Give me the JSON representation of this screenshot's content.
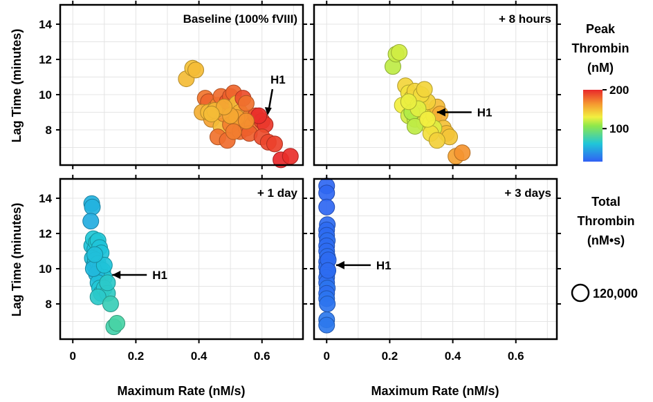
{
  "chart_data": {
    "type": "scatter",
    "xlabel": "Maximum Rate (nM/s)",
    "ylabel": "Lag Time (minutes)",
    "xlim": [
      -0.04,
      0.73
    ],
    "ylim": [
      6.0,
      15.1
    ],
    "xticks": [
      "0",
      "0.2",
      "0.4",
      "0.6"
    ],
    "xtick_values": [
      0,
      0.2,
      0.4,
      0.6
    ],
    "yticks": [
      "8",
      "10",
      "12",
      "14"
    ],
    "ytick_values": [
      8,
      10,
      12,
      14
    ],
    "grid": true,
    "colorbar": {
      "title": [
        "Peak",
        "Thrombin",
        "(nM)"
      ],
      "range": [
        15,
        200
      ],
      "ticks": [
        "200",
        "100"
      ],
      "tick_values": [
        200,
        100
      ]
    },
    "size_legend": {
      "title": [
        "Total",
        "Thrombin",
        "(nM•s)"
      ],
      "label": "120,000"
    },
    "panels": [
      {
        "title": "Baseline (100% fVIII)",
        "annotation": "H1",
        "annotation_point": [
          0.62,
          8.9
        ],
        "annotation_arrow": "down",
        "points": [
          [
            0.36,
            10.9,
            150
          ],
          [
            0.38,
            11.5,
            148
          ],
          [
            0.39,
            11.4,
            150
          ],
          [
            0.42,
            9.8,
            175
          ],
          [
            0.43,
            9.6,
            180
          ],
          [
            0.41,
            9.0,
            155
          ],
          [
            0.44,
            8.6,
            160
          ],
          [
            0.45,
            9.2,
            158
          ],
          [
            0.46,
            9.4,
            170
          ],
          [
            0.47,
            9.9,
            178
          ],
          [
            0.47,
            8.2,
            150
          ],
          [
            0.48,
            8.9,
            165
          ],
          [
            0.49,
            9.6,
            185
          ],
          [
            0.5,
            9.9,
            182
          ],
          [
            0.51,
            10.1,
            180
          ],
          [
            0.52,
            9.5,
            150
          ],
          [
            0.53,
            9.0,
            155
          ],
          [
            0.52,
            8.6,
            168
          ],
          [
            0.5,
            8.3,
            172
          ],
          [
            0.53,
            7.9,
            178
          ],
          [
            0.55,
            8.1,
            180
          ],
          [
            0.56,
            8.7,
            170
          ],
          [
            0.57,
            8.3,
            175
          ],
          [
            0.58,
            8.8,
            185
          ],
          [
            0.6,
            8.5,
            190
          ],
          [
            0.61,
            8.3,
            195
          ],
          [
            0.56,
            7.8,
            182
          ],
          [
            0.6,
            7.6,
            188
          ],
          [
            0.62,
            7.3,
            190
          ],
          [
            0.64,
            7.2,
            192
          ],
          [
            0.46,
            7.6,
            176
          ],
          [
            0.49,
            7.4,
            178
          ],
          [
            0.54,
            9.8,
            188
          ],
          [
            0.55,
            9.5,
            176
          ],
          [
            0.59,
            8.8,
            198
          ],
          [
            0.66,
            6.3,
            200
          ],
          [
            0.69,
            6.5,
            198
          ],
          [
            0.43,
            9.0,
            150
          ],
          [
            0.45,
            9.1,
            152
          ],
          [
            0.52,
            8.7,
            160
          ],
          [
            0.5,
            8.8,
            158
          ],
          [
            0.48,
            9.3,
            156
          ],
          [
            0.55,
            8.5,
            166
          ],
          [
            0.44,
            8.9,
            150
          ],
          [
            0.51,
            7.9,
            172
          ]
        ]
      },
      {
        "title": "+ 8 hours",
        "annotation": "H1",
        "annotation_point": [
          0.35,
          9.0
        ],
        "annotation_arrow": "left",
        "points": [
          [
            0.21,
            11.6,
            118
          ],
          [
            0.22,
            12.3,
            120
          ],
          [
            0.23,
            12.4,
            122
          ],
          [
            0.25,
            10.5,
            140
          ],
          [
            0.26,
            10.1,
            135
          ],
          [
            0.24,
            9.4,
            130
          ],
          [
            0.27,
            9.8,
            138
          ],
          [
            0.28,
            10.2,
            140
          ],
          [
            0.29,
            9.4,
            132
          ],
          [
            0.3,
            9.8,
            128
          ],
          [
            0.26,
            8.8,
            122
          ],
          [
            0.28,
            8.6,
            120
          ],
          [
            0.3,
            8.8,
            125
          ],
          [
            0.31,
            8.4,
            130
          ],
          [
            0.32,
            9.0,
            135
          ],
          [
            0.33,
            8.4,
            128
          ],
          [
            0.34,
            8.8,
            140
          ],
          [
            0.35,
            9.3,
            150
          ],
          [
            0.36,
            8.9,
            155
          ],
          [
            0.37,
            8.1,
            148
          ],
          [
            0.38,
            7.8,
            150
          ],
          [
            0.39,
            7.6,
            146
          ],
          [
            0.41,
            6.5,
            160
          ],
          [
            0.43,
            6.7,
            165
          ],
          [
            0.32,
            9.6,
            142
          ],
          [
            0.3,
            10.0,
            138
          ],
          [
            0.27,
            9.0,
            115
          ],
          [
            0.28,
            8.2,
            118
          ],
          [
            0.31,
            10.3,
            140
          ],
          [
            0.34,
            8.1,
            125
          ],
          [
            0.33,
            7.8,
            136
          ],
          [
            0.35,
            7.4,
            142
          ],
          [
            0.29,
            9.2,
            126
          ],
          [
            0.32,
            8.6,
            130
          ],
          [
            0.26,
            9.6,
            128
          ]
        ]
      },
      {
        "title": "+ 1 day",
        "annotation": "H1",
        "annotation_point": [
          0.125,
          9.65
        ],
        "annotation_arrow": "left",
        "points": [
          [
            0.06,
            13.7,
            52
          ],
          [
            0.062,
            13.5,
            52
          ],
          [
            0.057,
            12.7,
            50
          ],
          [
            0.06,
            11.3,
            60
          ],
          [
            0.065,
            11.7,
            62
          ],
          [
            0.07,
            11.1,
            60
          ],
          [
            0.075,
            11.5,
            64
          ],
          [
            0.08,
            11.6,
            62
          ],
          [
            0.085,
            11.2,
            60
          ],
          [
            0.09,
            10.9,
            60
          ],
          [
            0.062,
            10.6,
            58
          ],
          [
            0.068,
            10.2,
            56
          ],
          [
            0.072,
            10.5,
            60
          ],
          [
            0.08,
            10.3,
            62
          ],
          [
            0.085,
            10.0,
            58
          ],
          [
            0.09,
            9.6,
            58
          ],
          [
            0.095,
            9.9,
            60
          ],
          [
            0.1,
            9.5,
            62
          ],
          [
            0.075,
            9.7,
            56
          ],
          [
            0.08,
            9.2,
            58
          ],
          [
            0.085,
            8.9,
            62
          ],
          [
            0.09,
            8.6,
            60
          ],
          [
            0.1,
            8.9,
            64
          ],
          [
            0.11,
            8.6,
            68
          ],
          [
            0.08,
            8.4,
            66
          ],
          [
            0.12,
            8.0,
            72
          ],
          [
            0.13,
            6.7,
            76
          ],
          [
            0.14,
            6.9,
            78
          ],
          [
            0.065,
            10.0,
            55
          ],
          [
            0.1,
            10.2,
            60
          ],
          [
            0.11,
            9.2,
            66
          ],
          [
            0.07,
            10.8,
            58
          ]
        ]
      },
      {
        "title": "+ 3 days",
        "annotation": "H1",
        "annotation_point": [
          0.03,
          10.2
        ],
        "annotation_arrow": "left",
        "points": [
          [
            0.0,
            14.7,
            18
          ],
          [
            0.0,
            14.3,
            18
          ],
          [
            0.0,
            13.5,
            18
          ],
          [
            0.002,
            12.5,
            20
          ],
          [
            0.0,
            12.2,
            20
          ],
          [
            0.0,
            11.9,
            20
          ],
          [
            0.002,
            11.6,
            22
          ],
          [
            0.0,
            11.3,
            20
          ],
          [
            0.0,
            11.0,
            20
          ],
          [
            0.002,
            10.7,
            22
          ],
          [
            0.0,
            10.4,
            20
          ],
          [
            0.0,
            10.1,
            22
          ],
          [
            0.002,
            9.8,
            22
          ],
          [
            0.0,
            9.5,
            22
          ],
          [
            0.0,
            9.2,
            22
          ],
          [
            0.002,
            8.9,
            24
          ],
          [
            0.0,
            8.6,
            22
          ],
          [
            0.0,
            8.3,
            24
          ],
          [
            0.002,
            8.0,
            24
          ],
          [
            0.0,
            7.1,
            26
          ],
          [
            0.0,
            6.8,
            26
          ],
          [
            0.005,
            10.5,
            20
          ],
          [
            0.004,
            9.9,
            20
          ]
        ]
      }
    ]
  }
}
